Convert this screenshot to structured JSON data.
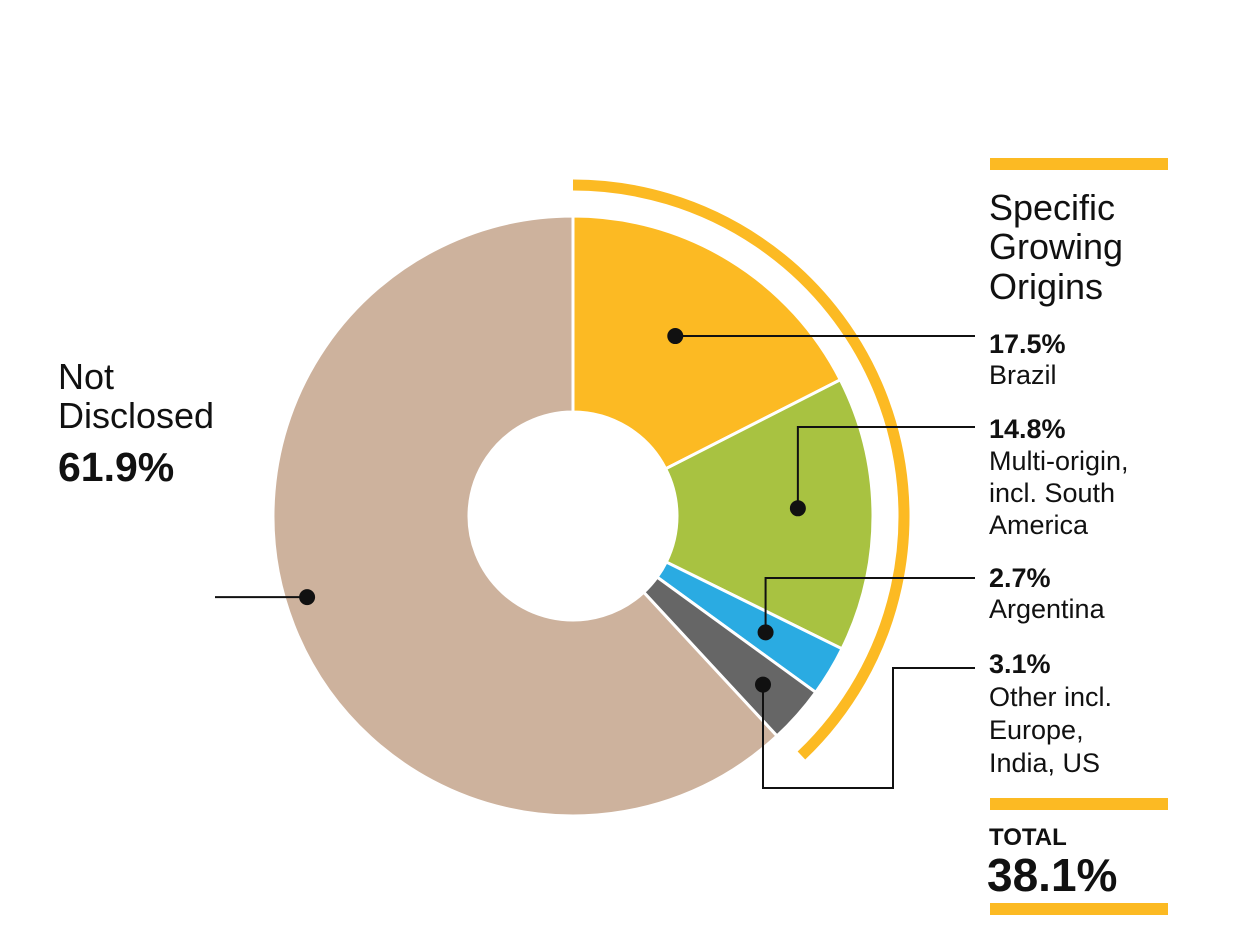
{
  "chart_data": {
    "type": "pie",
    "donut": true,
    "slices": [
      {
        "label": "Brazil",
        "value": 17.5,
        "pct_text": "17.5%",
        "color": "#FCBA23"
      },
      {
        "label": "Multi-origin, incl. South America",
        "label_lines": [
          "Multi-origin,",
          "incl. South",
          "America"
        ],
        "value": 14.8,
        "pct_text": "14.8%",
        "color": "#A8C241"
      },
      {
        "label": "Argentina",
        "value": 2.7,
        "pct_text": "2.7%",
        "color": "#2AABE2"
      },
      {
        "label": "Other incl. Europe, India, US",
        "label_lines": [
          "Other incl.",
          "Europe,",
          "India, US"
        ],
        "value": 3.1,
        "pct_text": "3.1%",
        "color": "#666666"
      },
      {
        "label": "Not Disclosed",
        "label_lines": [
          "Not",
          "Disclosed"
        ],
        "value": 61.9,
        "pct_text": "61.9%",
        "color": "#CDB29D"
      }
    ],
    "group": {
      "title_lines": [
        "Specific",
        "Growing",
        "Origins"
      ],
      "total_label": "TOTAL",
      "total_value": "38.1%",
      "accent_color": "#FCBA23"
    }
  }
}
